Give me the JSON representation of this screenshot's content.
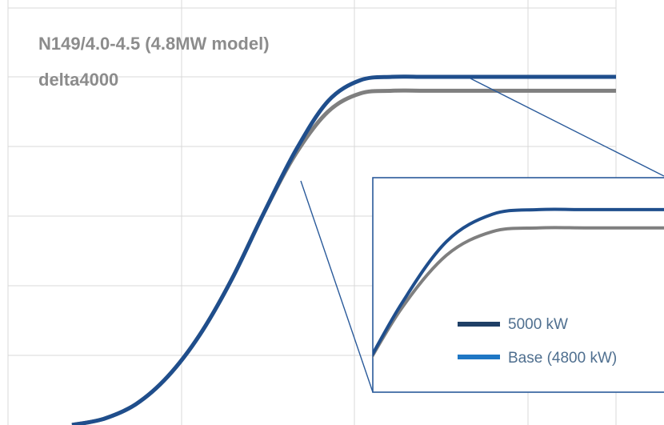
{
  "chart_data": {
    "type": "line",
    "title_lines": [
      "N149/4.0-4.5 (4.8MW model)",
      "delta4000"
    ],
    "xlabel": "",
    "ylabel": "",
    "grid": true,
    "x_tick_labels": [],
    "y_tick_labels": [],
    "series": [
      {
        "name": "5000 kW",
        "color": "#1f4e8c",
        "x": [
          3,
          4,
          5,
          6,
          7,
          8,
          9,
          10,
          11,
          12,
          13,
          14,
          15,
          16,
          17,
          18,
          19,
          20
        ],
        "values": [
          0,
          90,
          300,
          700,
          1300,
          2100,
          3050,
          3950,
          4650,
          4950,
          5000,
          5000,
          5000,
          5000,
          5000,
          5000,
          5000,
          5000
        ]
      },
      {
        "name": "Base (4800 kW)",
        "color": "#7f7f7f",
        "x": [
          3,
          4,
          5,
          6,
          7,
          8,
          9,
          10,
          11,
          12,
          13,
          14,
          15,
          16,
          17,
          18,
          19,
          20
        ],
        "values": [
          0,
          90,
          300,
          700,
          1300,
          2100,
          3050,
          3900,
          4500,
          4760,
          4800,
          4800,
          4800,
          4800,
          4800,
          4800,
          4800,
          4800
        ]
      }
    ],
    "inset": {
      "description_visible": false,
      "legend": [
        {
          "label": "5000 kW",
          "color": "#1f3f66"
        },
        {
          "label": "Base (4800 kW)",
          "color": "#1f77c4"
        }
      ]
    }
  }
}
